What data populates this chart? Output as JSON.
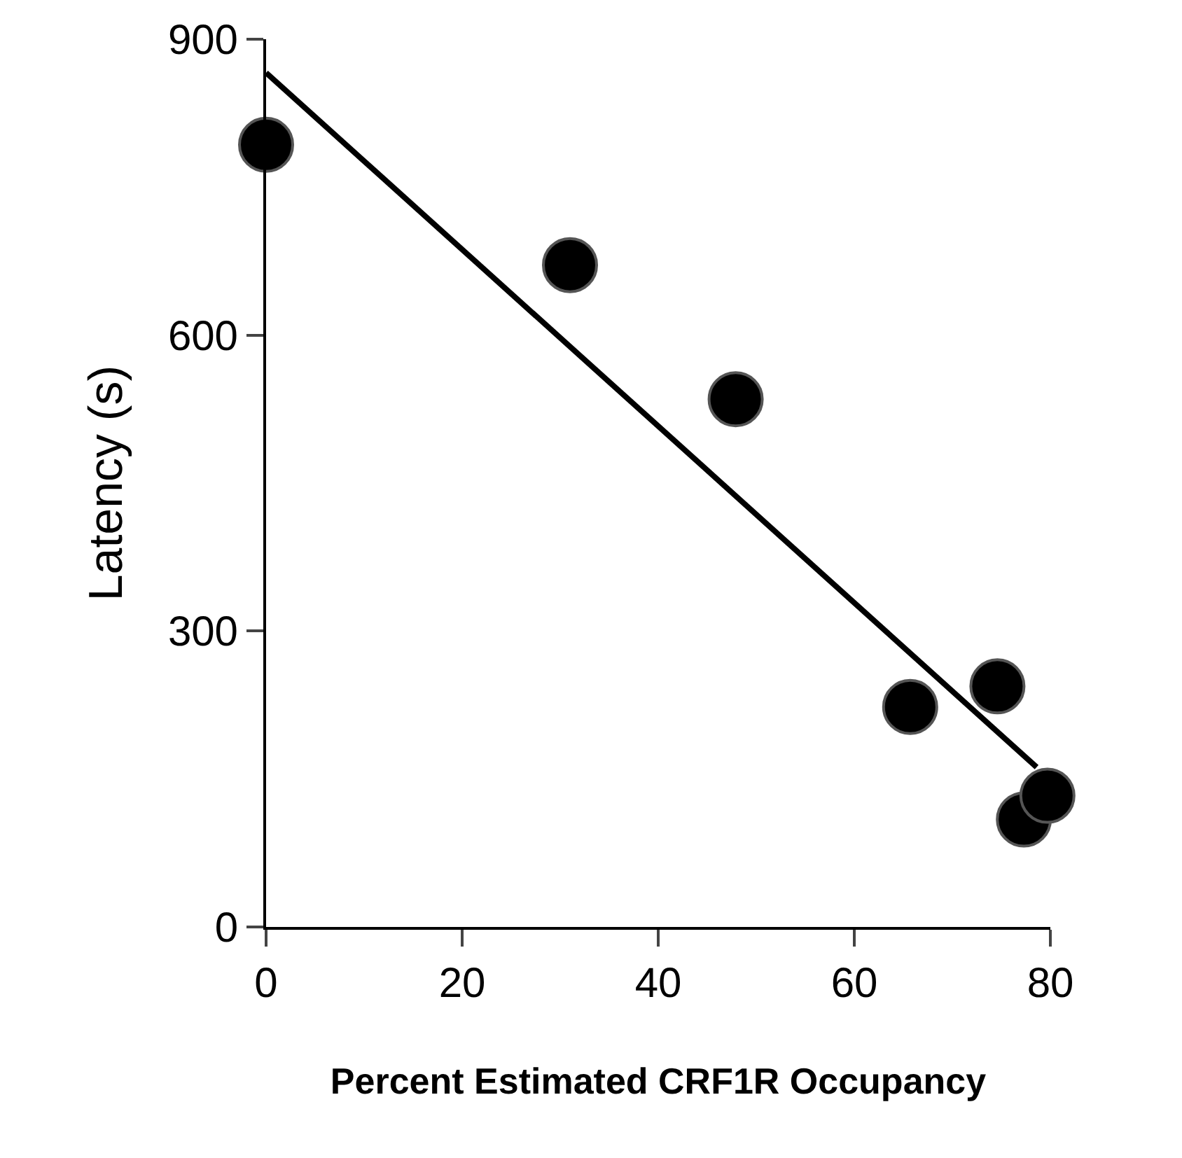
{
  "chart_data": {
    "type": "scatter",
    "xlabel": "Percent Estimated CRF1R Occupancy",
    "ylabel": "Latency (s)",
    "xlim": [
      0,
      80
    ],
    "xticks": [
      0,
      20,
      40,
      60,
      80
    ],
    "ylim": [
      0,
      900
    ],
    "yticks": [
      0,
      300,
      600,
      900
    ],
    "marker": "circle",
    "series": [
      {
        "color": "#000000",
        "x": [
          0,
          31,
          47.9,
          65.7,
          74.6,
          77.3,
          79.7
        ],
        "values": [
          793,
          671,
          535,
          223,
          244,
          109,
          133
        ]
      },
      {
        "type": "line",
        "color": "#000000",
        "line_style": "solid",
        "marker": "none",
        "x": [
          0,
          78.6
        ],
        "values": [
          866,
          162
        ]
      }
    ]
  }
}
